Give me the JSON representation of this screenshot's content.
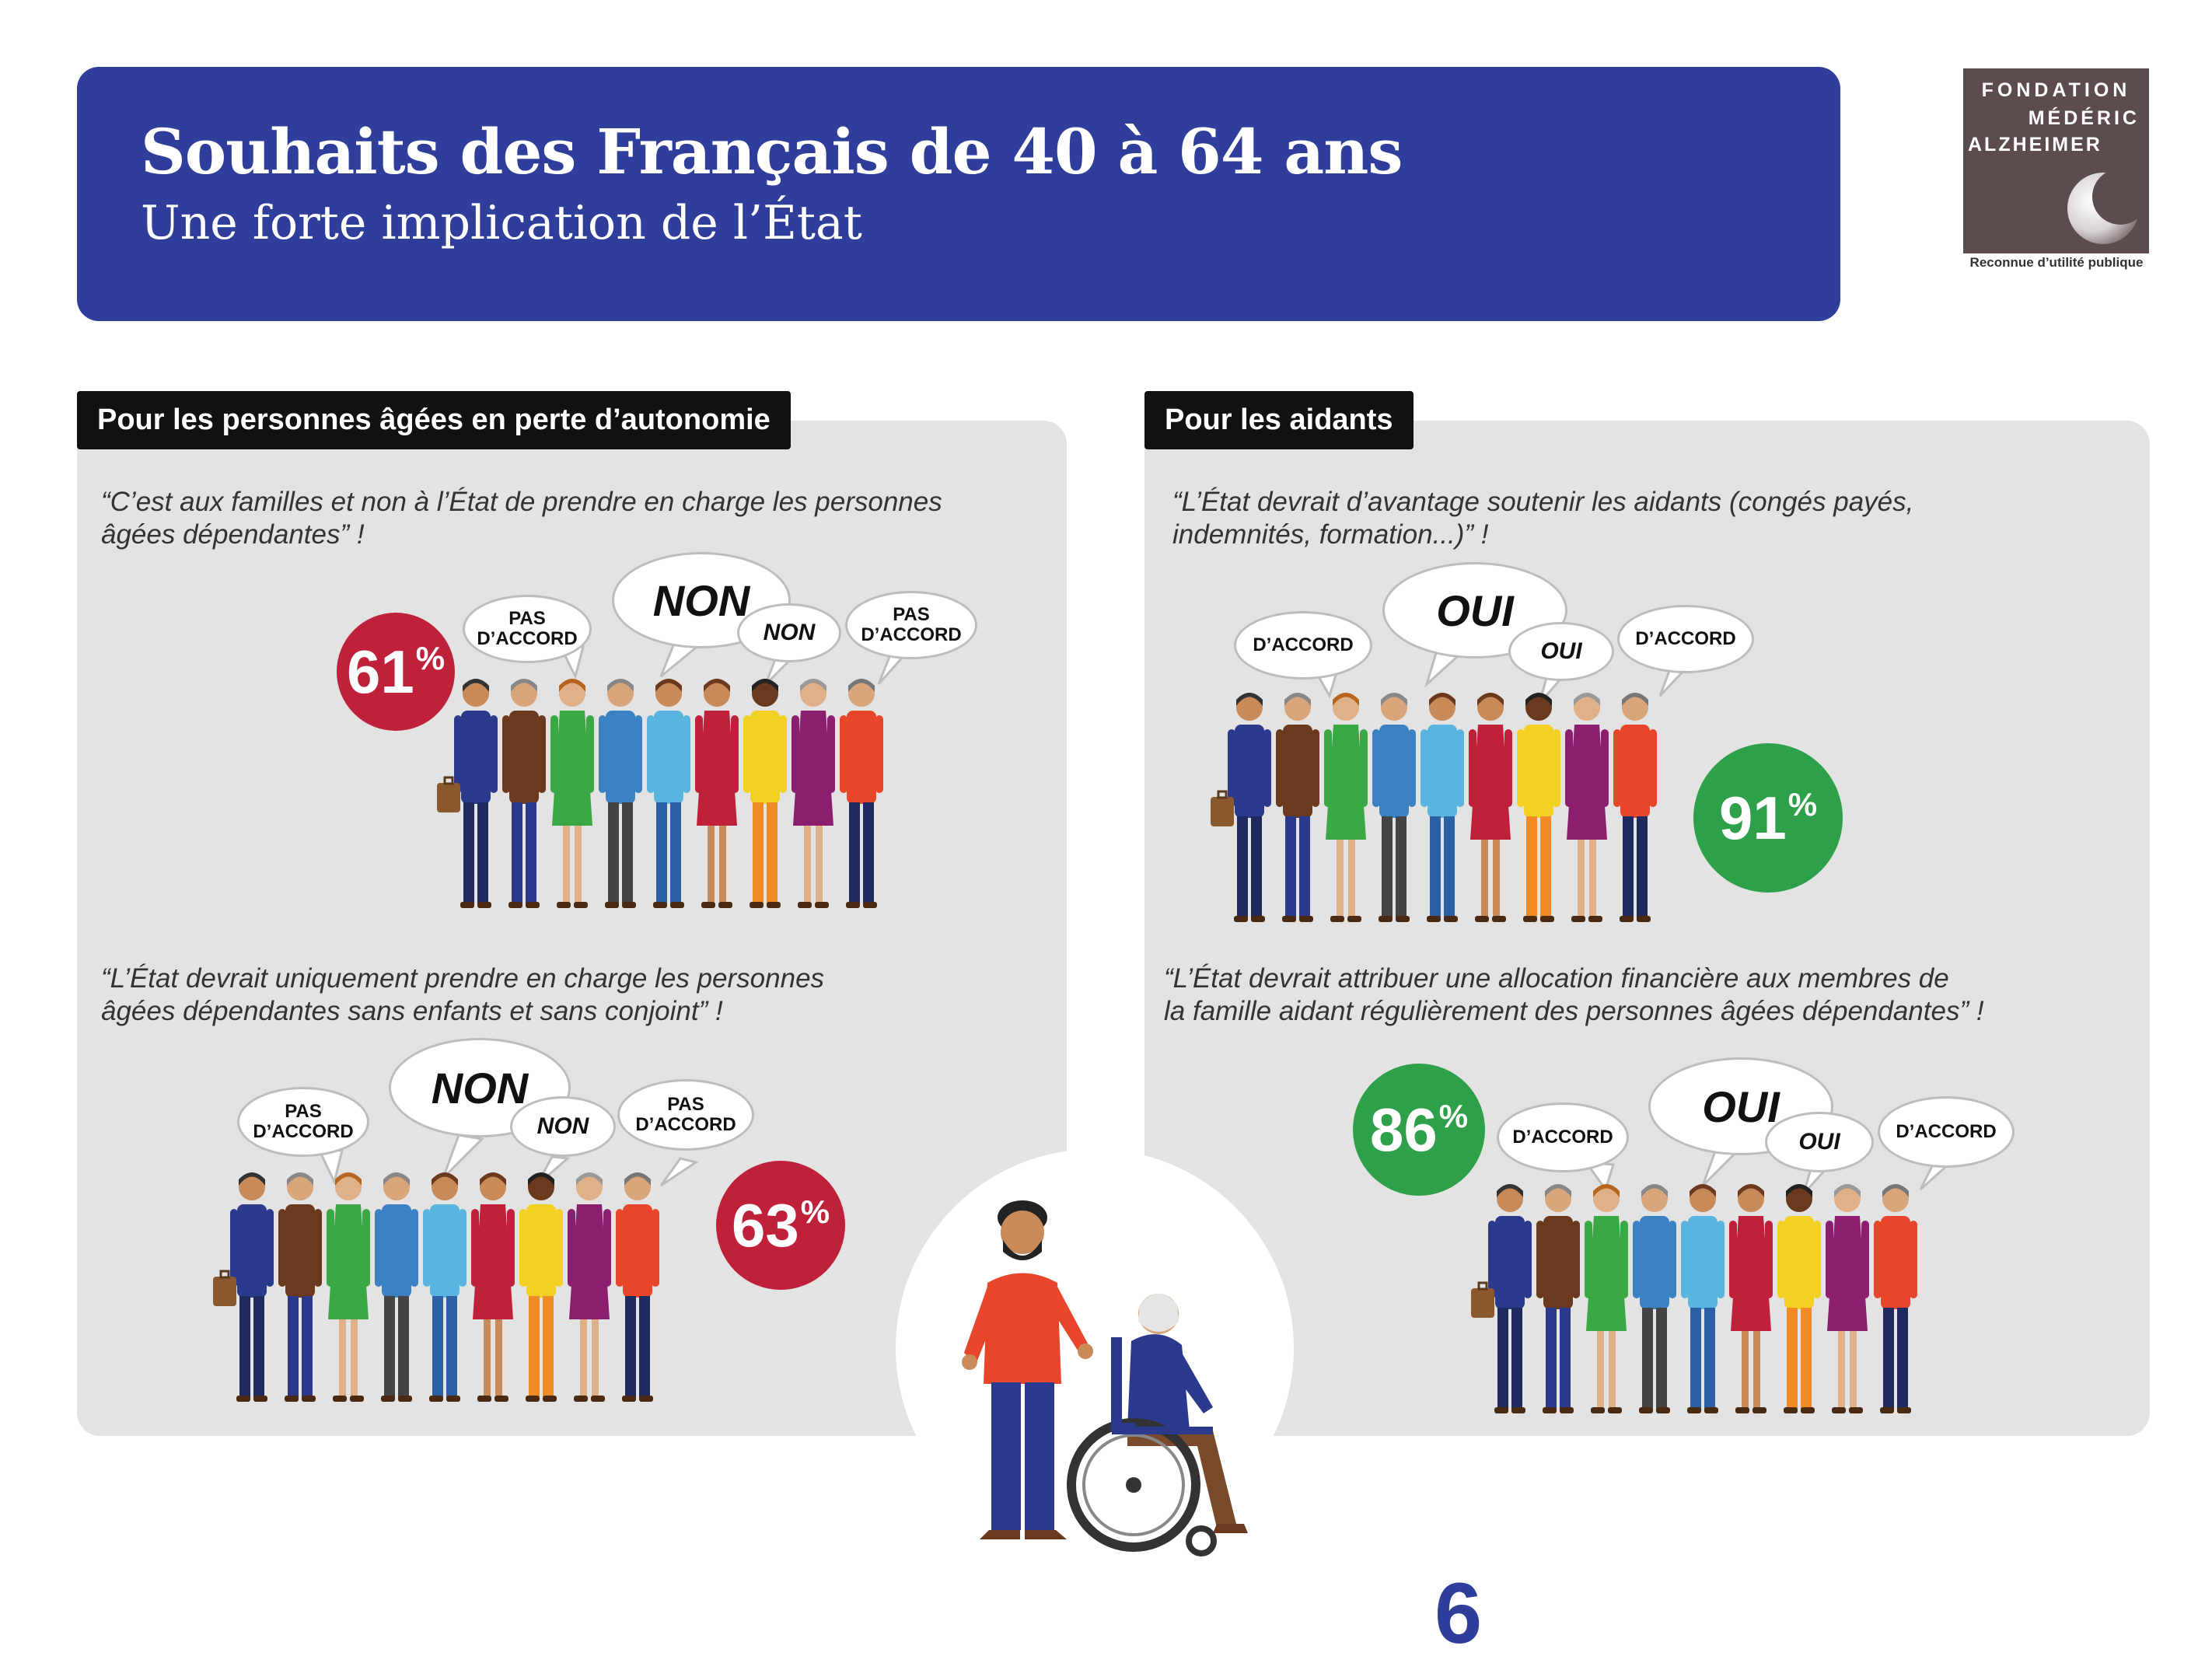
{
  "header": {
    "title": "Souhaits des Français de 40 à 64 ans",
    "subtitle": "Une forte implication de l’État"
  },
  "logo": {
    "line1": "FONDATION",
    "line2": "MÉDÉRIC",
    "line3": "ALZHEIMER",
    "caption": "Reconnue d’utilité publique"
  },
  "left": {
    "tag": "Pour les personnes âgées en perte d’autonomie",
    "q1": {
      "line1": "“C’est aux familles et non à l’État de prendre en charge les personnes",
      "line2": "âgées dépendantes” !",
      "pct": "61",
      "pct_sign": "%",
      "b1a": "PAS",
      "b1b": "D’ACCORD",
      "b2": "NON",
      "b3": "NON",
      "b4a": "PAS",
      "b4b": "D’ACCORD"
    },
    "q2": {
      "line1": "“L’État devrait uniquement prendre en charge les personnes",
      "line2": "âgées dépendantes sans enfants et sans conjoint” !",
      "pct": "63",
      "pct_sign": "%",
      "b1a": "PAS",
      "b1b": "D’ACCORD",
      "b2": "NON",
      "b3": "NON",
      "b4a": "PAS",
      "b4b": "D’ACCORD"
    }
  },
  "right": {
    "tag": "Pour les aidants",
    "q1": {
      "line1": "“L’État devrait d’avantage soutenir les aidants (congés payés,",
      "line2": "indemnités, formation...)” !",
      "pct": "91",
      "pct_sign": "%",
      "b1": "D’ACCORD",
      "b2": "OUI",
      "b3": "OUI",
      "b4": "D’ACCORD"
    },
    "q2": {
      "line1": "“L’État devrait attribuer une allocation financière aux membres de",
      "line2": "la famille aidant régulièrement des personnes âgées dépendantes” !",
      "pct": "86",
      "pct_sign": "%",
      "b1": "D’ACCORD",
      "b2": "OUI",
      "b3": "OUI",
      "b4": "D’ACCORD"
    }
  },
  "page_number": "6",
  "colors": {
    "header_blue": "#2e3e9a",
    "red": "#c0213a",
    "green": "#2ea04a",
    "panel_gray": "#e4e3e3",
    "logo_brown": "#5d4c4e"
  }
}
